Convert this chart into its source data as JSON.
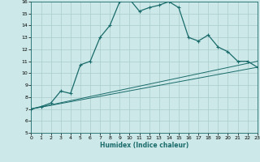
{
  "xlabel": "Humidex (Indice chaleur)",
  "xlim": [
    0,
    23
  ],
  "ylim": [
    5,
    16
  ],
  "xticks": [
    0,
    1,
    2,
    3,
    4,
    5,
    6,
    7,
    8,
    9,
    10,
    11,
    12,
    13,
    14,
    15,
    16,
    17,
    18,
    19,
    20,
    21,
    22,
    23
  ],
  "yticks": [
    5,
    6,
    7,
    8,
    9,
    10,
    11,
    12,
    13,
    14,
    15,
    16
  ],
  "bg_color": "#cce8e8",
  "line_color": "#1a6b6b",
  "grid_color": "#aacccc",
  "main_x": [
    0,
    1,
    2,
    3,
    4,
    5,
    6,
    7,
    8,
    9,
    10,
    11,
    12,
    13,
    14,
    15,
    16,
    17,
    18,
    19,
    20,
    21,
    22,
    23
  ],
  "main_y": [
    7.0,
    7.2,
    7.5,
    8.5,
    8.3,
    10.7,
    11.0,
    13.0,
    14.0,
    16.0,
    16.2,
    15.2,
    15.5,
    15.7,
    16.0,
    15.5,
    13.0,
    12.7,
    13.2,
    12.2,
    11.8,
    11.0,
    11.0,
    10.5
  ],
  "line2_x": [
    0,
    23
  ],
  "line2_y": [
    7.0,
    11.0
  ],
  "line3_x": [
    0,
    23
  ],
  "line3_y": [
    7.0,
    10.5
  ]
}
